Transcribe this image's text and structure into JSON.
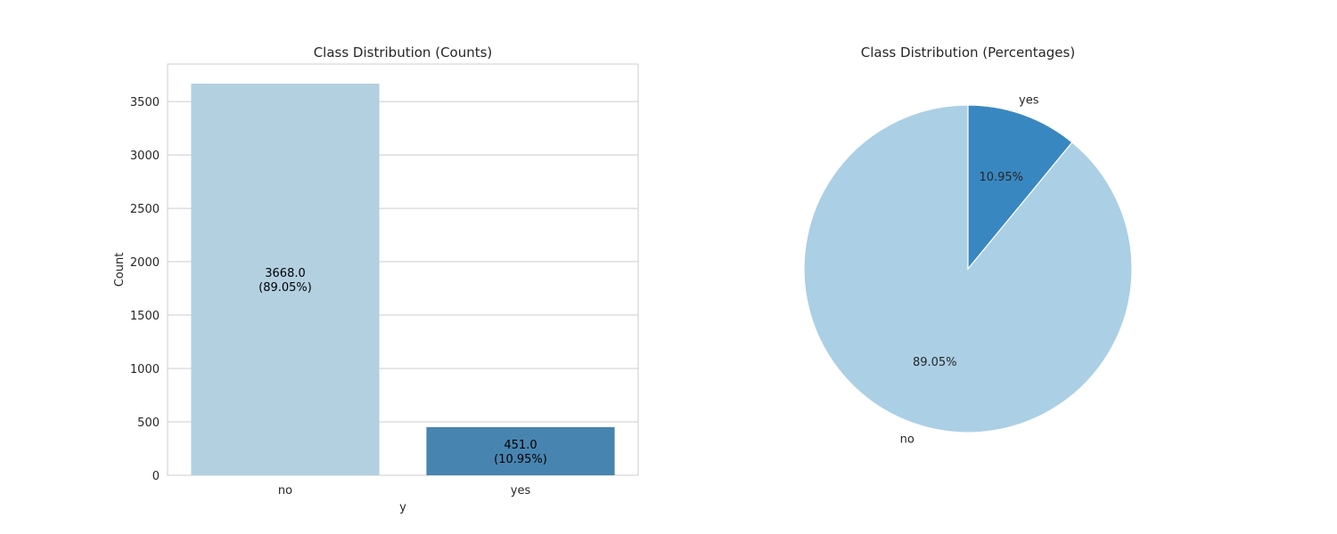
{
  "chart_data": [
    {
      "type": "bar",
      "title": "Class Distribution (Counts)",
      "xlabel": "y",
      "ylabel": "Count",
      "categories": [
        "no",
        "yes"
      ],
      "values": [
        3668,
        451
      ],
      "bar_labels": [
        [
          "3668.0",
          "(89.05%)"
        ],
        [
          "451.0",
          "(10.95%)"
        ]
      ],
      "colors": [
        "#b3d0e1",
        "#4884b0"
      ],
      "yticks": [
        0,
        500,
        1000,
        1500,
        2000,
        2500,
        3000,
        3500
      ],
      "ylim": [
        0,
        3851
      ],
      "grid": true
    },
    {
      "type": "pie",
      "title": "Class Distribution (Percentages)",
      "labels": [
        "no",
        "yes"
      ],
      "values": [
        89.05,
        10.95
      ],
      "pct_labels": [
        "89.05%",
        "10.95%"
      ],
      "colors": [
        "#abcfe5",
        "#3987c0"
      ],
      "start_angle": 90,
      "direction": "counterclockwise"
    }
  ]
}
